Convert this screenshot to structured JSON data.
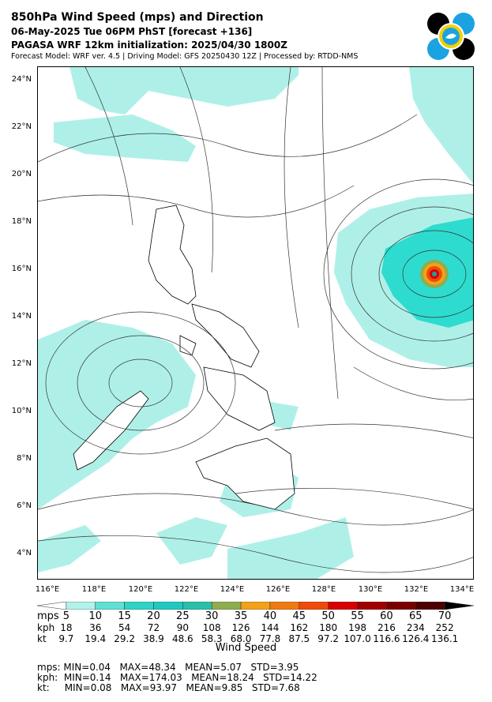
{
  "header": {
    "title": "850hPa Wind Speed (mps) and Direction",
    "valid_time": "06-May-2025 Tue 06PM PhST [forecast +136]",
    "init": "PAGASA WRF 12km initialization: 2025/04/30 1800Z",
    "model_info": "Forecast Model: WRF ver. 4.5 | Driving Model: GFS 20250430 12Z | Processed by: RTDD-NMS"
  },
  "map": {
    "lat_labels": [
      "24°N",
      "22°N",
      "20°N",
      "18°N",
      "16°N",
      "14°N",
      "12°N",
      "10°N",
      "8°N",
      "6°N",
      "4°N"
    ],
    "lon_labels": [
      "116°E",
      "118°E",
      "120°E",
      "122°E",
      "124°E",
      "126°E",
      "128°E",
      "130°E",
      "132°E",
      "134°E"
    ],
    "colors": {
      "land_border": "#000000",
      "streamline": "#333333",
      "light_wind": "#aef0e8",
      "medium_wind": "#2ddccf"
    }
  },
  "colorbar": {
    "title": "Wind Speed",
    "row_labels": {
      "mps": "mps",
      "kph": "kph",
      "kt": "kt"
    },
    "mps": [
      "5",
      "10",
      "15",
      "20",
      "25",
      "30",
      "35",
      "40",
      "45",
      "50",
      "55",
      "60",
      "65",
      "70"
    ],
    "kph": [
      "18",
      "36",
      "54",
      "72",
      "90",
      "108",
      "126",
      "144",
      "162",
      "180",
      "198",
      "216",
      "234",
      "252"
    ],
    "kt": [
      "9.7",
      "19.4",
      "29.2",
      "38.9",
      "48.6",
      "58.3",
      "68.0",
      "77.8",
      "87.5",
      "97.2",
      "107.0",
      "116.6",
      "126.4",
      "136.1"
    ],
    "colors": [
      "#ffffff",
      "#b2f2ea",
      "#5fe0d2",
      "#2fd3c7",
      "#1fc9c2",
      "#2bbfaa",
      "#8fad4f",
      "#f2a21a",
      "#f07a12",
      "#ef4a0b",
      "#d80000",
      "#a00000",
      "#7a0000",
      "#4d0000",
      "#000000"
    ]
  },
  "stats": {
    "mps": "mps: MIN=0.04   MAX=48.34   MEAN=5.07   STD=3.95",
    "kph": "kph:  MIN=0.14   MAX=174.03   MEAN=18.24   STD=14.22",
    "kt": "kt:     MIN=0.08   MAX=93.97   MEAN=9.85   STD=7.68"
  }
}
